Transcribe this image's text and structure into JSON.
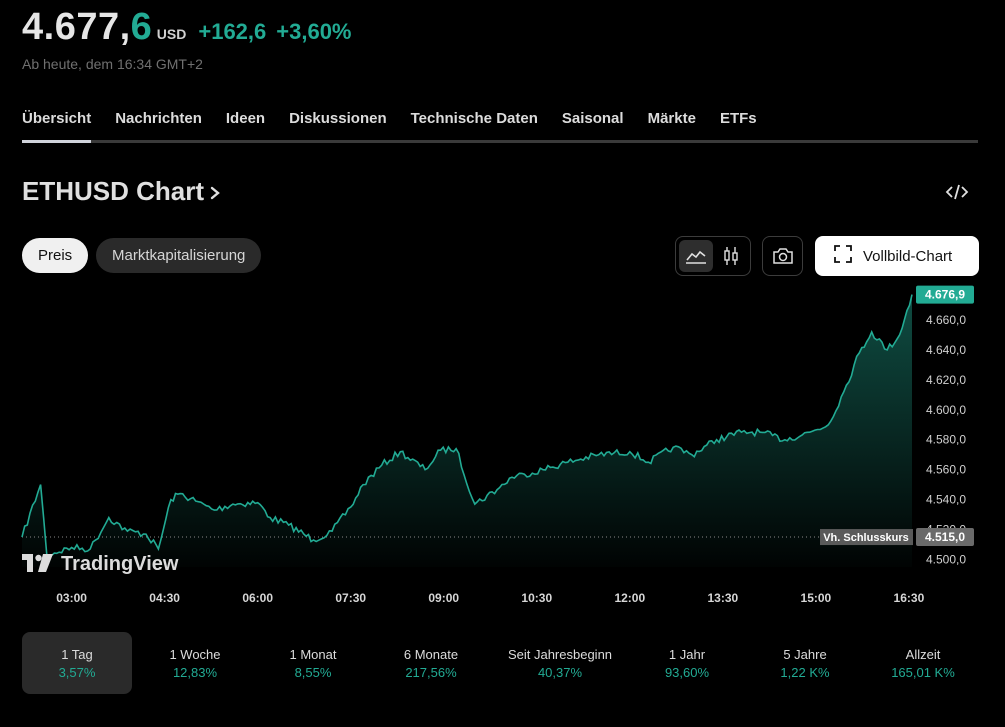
{
  "header": {
    "price_int": "4.677,",
    "price_dec": "6",
    "currency": "USD",
    "change": "+162,6",
    "change_pct": "+3,60%",
    "as_of": "Ab heute, dem 16:34 GMT+2"
  },
  "tabs": [
    {
      "label": "Übersicht",
      "active": true
    },
    {
      "label": "Nachrichten"
    },
    {
      "label": "Ideen"
    },
    {
      "label": "Diskussionen"
    },
    {
      "label": "Technische Daten"
    },
    {
      "label": "Saisonal"
    },
    {
      "label": "Märkte"
    },
    {
      "label": "ETFs"
    }
  ],
  "chart_section": {
    "title": "ETHUSD Chart",
    "toggle": {
      "price_label": "Preis",
      "mcap_label": "Marktkapitalisierung"
    },
    "fullscreen_label": "Vollbild-Chart",
    "icons": {
      "embed": "code-icon",
      "line": "area-chart-icon",
      "candle": "candlestick-icon",
      "snapshot": "camera-icon",
      "fullscreen": "fullscreen-icon"
    }
  },
  "chart_data": {
    "type": "area",
    "xlabel": "",
    "ylabel": "",
    "x_ticks": [
      "03:00",
      "04:30",
      "06:00",
      "07:30",
      "09:00",
      "10:30",
      "12:00",
      "13:30",
      "15:00",
      "16:30"
    ],
    "y_ticks": [
      "4.500,0",
      "4.520,0",
      "4.540,0",
      "4.560,0",
      "4.580,0",
      "4.600,0",
      "4.620,0",
      "4.640,0",
      "4.660,0"
    ],
    "ylim": [
      4495,
      4680
    ],
    "x_hours": [
      2.2,
      2.5,
      2.6,
      3.0,
      3.3,
      3.6,
      3.9,
      4.2,
      4.4,
      4.6,
      4.75,
      5.0,
      5.3,
      5.6,
      6.0,
      6.2,
      6.5,
      6.9,
      7.2,
      7.5,
      7.7,
      8.0,
      8.3,
      8.7,
      8.95,
      9.2,
      9.5,
      9.9,
      10.1,
      10.3,
      10.6,
      11.0,
      11.5,
      12.0,
      12.3,
      12.7,
      13.0,
      13.4,
      13.8,
      14.1,
      14.5,
      14.9,
      15.2,
      15.45,
      15.7,
      15.9,
      16.15,
      16.35,
      16.55
    ],
    "y": [
      4515,
      4550,
      4503,
      4508,
      4507,
      4528,
      4519,
      4517,
      4507,
      4540,
      4544,
      4539,
      4533,
      4537,
      4538,
      4528,
      4523,
      4513,
      4519,
      4535,
      4550,
      4563,
      4572,
      4560,
      4573,
      4574,
      4537,
      4548,
      4555,
      4557,
      4560,
      4565,
      4570,
      4572,
      4565,
      4575,
      4570,
      4580,
      4585,
      4585,
      4580,
      4585,
      4590,
      4612,
      4638,
      4652,
      4640,
      4650,
      4676.9
    ],
    "series": [
      {
        "name": "ETHUSD",
        "color": "#22ab94"
      }
    ],
    "last_value_label": "4.676,9",
    "prev_close_value": 4515.0,
    "prev_close_caption": "Vh. Schlusskurs",
    "prev_close_label": "4.515,0",
    "grid": false,
    "watermark": "TradingView"
  },
  "periods": [
    {
      "label": "1 Tag",
      "value": "3,57%",
      "active": true
    },
    {
      "label": "1 Woche",
      "value": "12,83%"
    },
    {
      "label": "1 Monat",
      "value": "8,55%"
    },
    {
      "label": "6 Monate",
      "value": "217,56%"
    },
    {
      "label": "Seit Jahresbeginn",
      "value": "40,37%"
    },
    {
      "label": "1 Jahr",
      "value": "93,60%"
    },
    {
      "label": "5 Jahre",
      "value": "1,22 K%"
    },
    {
      "label": "Allzeit",
      "value": "165,01 K%"
    }
  ],
  "colors": {
    "accent": "#22ab94",
    "background": "#000000"
  }
}
